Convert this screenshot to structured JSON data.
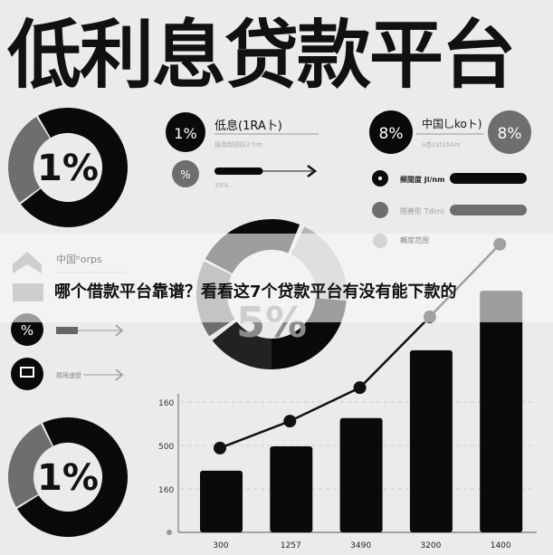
{
  "title": "低利息贷款平台",
  "banner_text": "哪个借款平台靠谱？看看这7个贷款平台有没有能下款的",
  "colors": {
    "background": "#ebebeb",
    "black": "#0a0a0a",
    "gray": "#6e6e6e",
    "light_gray": "#b5b5b5"
  },
  "donuts": {
    "top_left": {
      "label": "1%"
    },
    "center": {
      "label": "5%"
    },
    "bottom_left": {
      "label": "1%"
    }
  },
  "stats_left": {
    "badge": "1%",
    "heading": "低息(1RA卜)",
    "subtext": "独我越德跃2 hm",
    "small_badge": "%",
    "progress_label": "33%",
    "progress": 0.33
  },
  "stats_right": {
    "badge_left": "8%",
    "heading": "中国乚koト)",
    "subtext": "a杏s1t16Am",
    "badge_right": "8%",
    "rows": [
      {
        "label": "频閒度 Jl/nm",
        "icon": "clock-icon"
      },
      {
        "label": "閉善形 Tdimi",
        "icon": "info-icon"
      },
      {
        "label": "觸度范围",
        "icon": "dot-icon"
      }
    ]
  },
  "left_list": {
    "heading": "中国ᵇorps",
    "items": [
      {
        "icon": "percent-icon",
        "badge": "%"
      },
      {
        "icon": "monitor-icon",
        "label": "楕限速盟"
      }
    ]
  },
  "chart_data": {
    "type": "bar",
    "categories": [
      "300",
      "1257",
      "3490",
      "3200",
      "1400"
    ],
    "y_tick_labels": [
      "160",
      "500",
      "160"
    ],
    "series": [
      {
        "kind": "bar",
        "values": [
          1.42,
          1.98,
          2.63,
          4.19,
          5.56
        ]
      },
      {
        "kind": "line",
        "values": [
          1.94,
          2.56,
          3.33,
          4.96,
          6.63
        ]
      }
    ],
    "ylim": [
      0,
      3.2
    ],
    "grid": true,
    "gridline_style": "dashed"
  }
}
